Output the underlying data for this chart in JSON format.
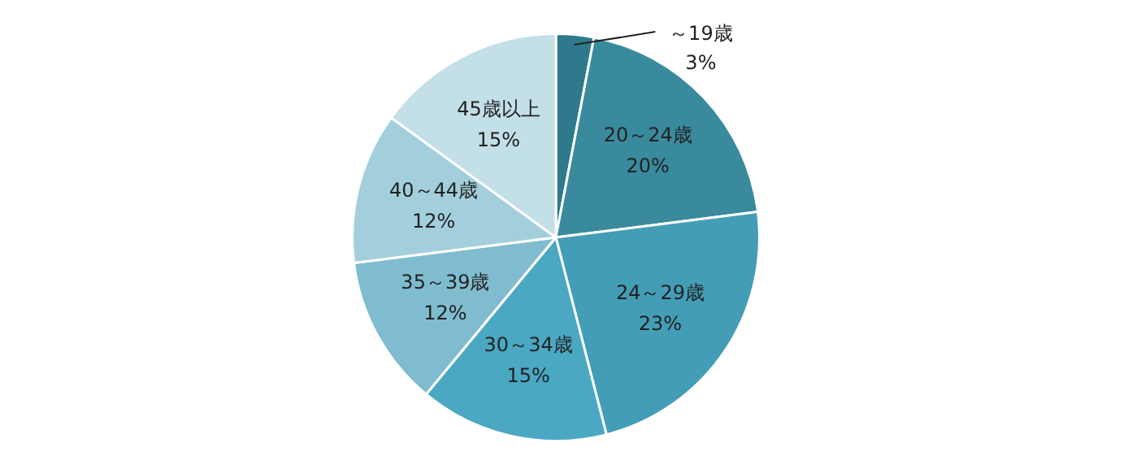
{
  "chart_data": {
    "type": "pie",
    "categories": [
      "～19歳",
      "20～24歳",
      "24～29歳",
      "30～34歳",
      "35～39歳",
      "40～44歳",
      "45歳以上"
    ],
    "values": [
      3,
      20,
      23,
      15,
      12,
      12,
      15
    ],
    "value_labels": [
      "3%",
      "20%",
      "23%",
      "15%",
      "12%",
      "12%",
      "15%"
    ],
    "colors": [
      "#2e7a8c",
      "#3a8a9e",
      "#449db6",
      "#4aa8c3",
      "#80bccf",
      "#a3cfdd",
      "#c3dfe8"
    ],
    "legend": false
  }
}
